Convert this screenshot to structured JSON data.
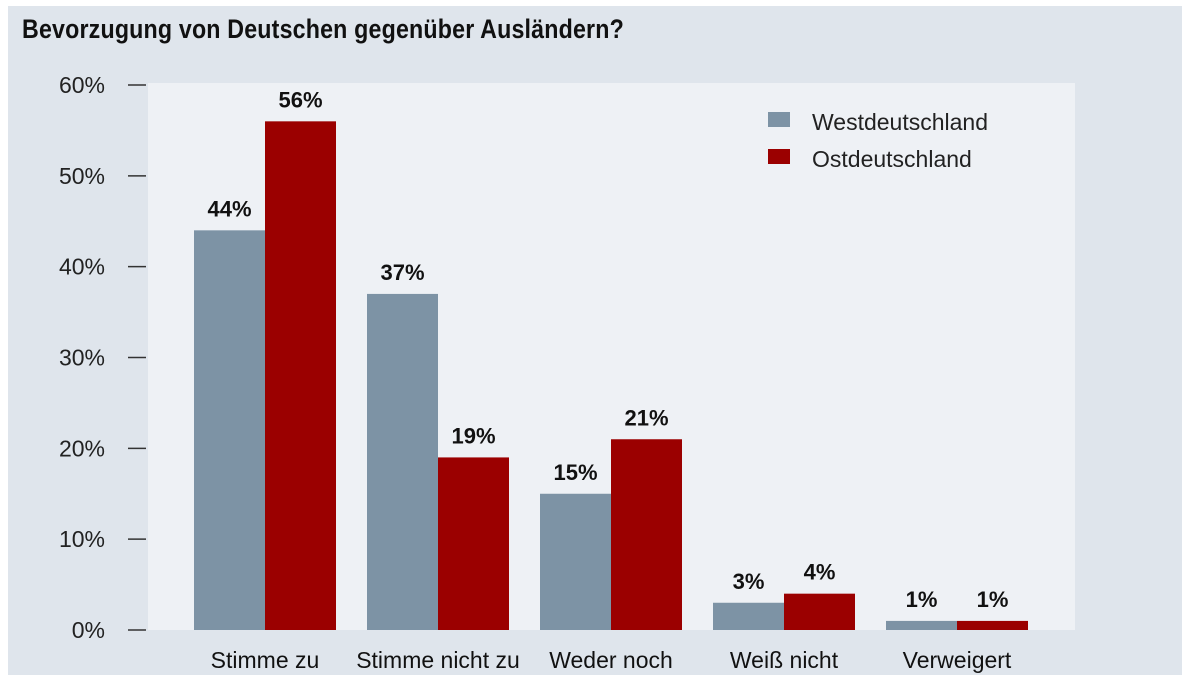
{
  "chart_data": {
    "type": "bar",
    "title": "Bevorzugung von Deutschen gegenüber Ausländern?",
    "categories": [
      "Stimme zu",
      "Stimme nicht zu",
      "Weder noch",
      "Weiß nicht",
      "Verweigert"
    ],
    "series": [
      {
        "name": "Westdeutschland",
        "color": "#7d93a5",
        "values": [
          44,
          37,
          15,
          3,
          1
        ]
      },
      {
        "name": "Ostdeutschland",
        "color": "#9b0000",
        "values": [
          56,
          19,
          21,
          4,
          1
        ]
      }
    ],
    "ylim": [
      0,
      60
    ],
    "yticks": [
      0,
      10,
      20,
      30,
      40,
      50,
      60
    ],
    "ytick_format": "%",
    "legend": "top-right",
    "grid": false,
    "data_labels": true
  }
}
